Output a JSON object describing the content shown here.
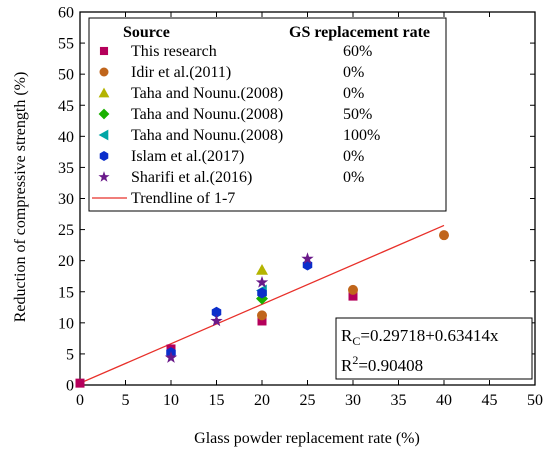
{
  "chart_data": {
    "type": "scatter",
    "xlabel": "Glass powder replacement rate (%)",
    "ylabel": "Reduction of compressive strength (%)",
    "xlim": [
      0,
      50
    ],
    "ylim": [
      0,
      60
    ],
    "x_ticks": [
      "0",
      "5",
      "10",
      "15",
      "20",
      "25",
      "30",
      "35",
      "40",
      "45",
      "50"
    ],
    "y_ticks": [
      "0",
      "5",
      "10",
      "15",
      "20",
      "25",
      "30",
      "35",
      "40",
      "45",
      "50",
      "55",
      "60"
    ],
    "grid": false,
    "legend": {
      "placement": "top-left",
      "header_source": "Source",
      "header_rate": "GS replacement rate"
    },
    "series": [
      {
        "name": "This research",
        "rate": "60%",
        "marker": "square",
        "color": "#b5005b",
        "points": [
          [
            0,
            0.3
          ],
          [
            10,
            5.8
          ],
          [
            20,
            10.3
          ],
          [
            30,
            14.3
          ]
        ]
      },
      {
        "name": "Idir et al.(2011)",
        "rate": "0%",
        "marker": "circle",
        "color": "#c0651b",
        "points": [
          [
            20,
            11.2
          ],
          [
            30,
            15.3
          ],
          [
            40,
            24.1
          ]
        ]
      },
      {
        "name": "Taha and Nounu.(2008)",
        "rate": "0%",
        "marker": "triangle-up",
        "color": "#b4b400",
        "points": [
          [
            20,
            18.5
          ]
        ]
      },
      {
        "name": "Taha and Nounu.(2008)",
        "rate": "50%",
        "marker": "diamond",
        "color": "#19b000",
        "points": [
          [
            20,
            13.9
          ]
        ]
      },
      {
        "name": "Taha and Nounu.(2008)",
        "rate": "100%",
        "marker": "triangle-left",
        "color": "#00a6a6",
        "points": [
          [
            20,
            15.2
          ]
        ]
      },
      {
        "name": "Islam et al.(2017)",
        "rate": "0%",
        "marker": "hexagon",
        "color": "#0b2ecb",
        "points": [
          [
            10,
            5.2
          ],
          [
            15,
            11.7
          ],
          [
            20,
            14.8
          ],
          [
            25,
            19.3
          ]
        ]
      },
      {
        "name": "Sharifi et al.(2016)",
        "rate": "0%",
        "marker": "star",
        "color": "#6a1a8a",
        "points": [
          [
            10,
            4.4
          ],
          [
            15,
            10.3
          ],
          [
            20,
            16.5
          ],
          [
            25,
            20.3
          ]
        ]
      }
    ],
    "trendline": {
      "name": "Trendline of 1-7",
      "color": "#e8302a",
      "intercept": 0.29718,
      "slope": 0.63414,
      "x_range": [
        0,
        40
      ]
    },
    "annotation": {
      "eq_prefix": "R",
      "eq_sub": "C",
      "eq_rest": "=0.29718+0.63414x",
      "r2_prefix": "R",
      "r2_sup": "2",
      "r2_rest": "=0.90408"
    }
  }
}
